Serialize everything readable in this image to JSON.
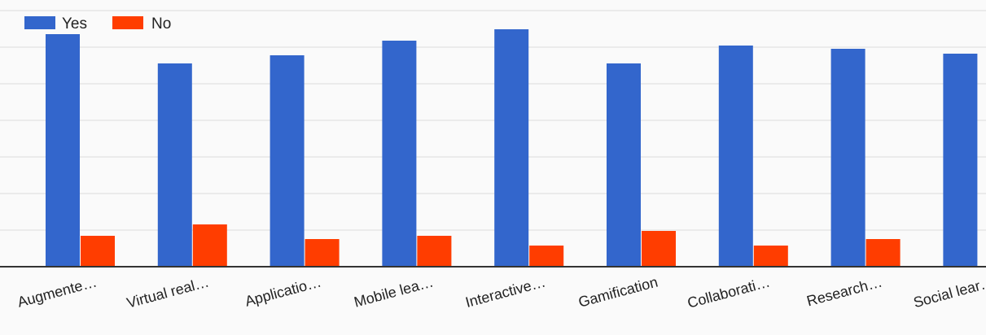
{
  "chart_data": {
    "type": "bar",
    "categories": [
      "Augmente…",
      "Virtual real…",
      "Applicatio…",
      "Mobile lea…",
      "Interactive…",
      "Gamification",
      "Collaborati…",
      "Research…",
      "Social lear…"
    ],
    "series": [
      {
        "name": "Yes",
        "color": "#3366cc",
        "values": [
          143,
          125,
          130,
          139,
          146,
          125,
          136,
          134,
          131
        ]
      },
      {
        "name": "No",
        "color": "#ff3d00",
        "values": [
          19,
          26,
          17,
          19,
          13,
          22,
          13,
          17,
          null
        ]
      }
    ],
    "ylim": [
      0,
      157
    ],
    "gridlines": [
      0,
      22.5,
      45,
      67.5,
      90,
      112.5,
      135,
      157.5
    ],
    "grid": true,
    "legend": "top-left",
    "title": "",
    "xlabel": "",
    "ylabel": ""
  }
}
